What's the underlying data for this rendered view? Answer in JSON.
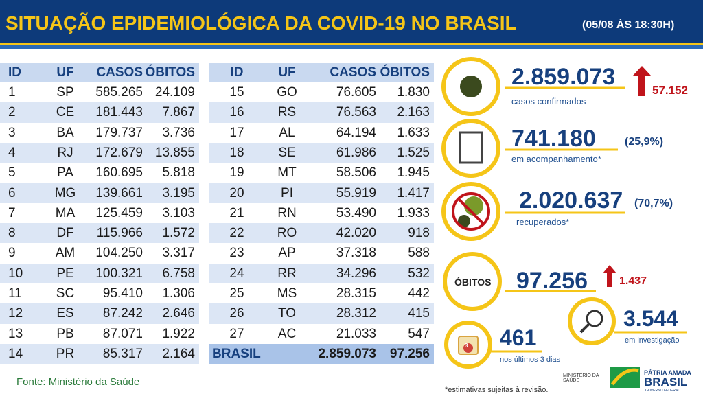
{
  "header": {
    "title": "SITUAÇÃO EPIDEMIOLÓGICA DA COVID-19 NO BRASIL",
    "date": "(05/08 ÀS 18:30H)"
  },
  "table_left": {
    "columns": [
      "ID",
      "UF",
      "CASOS",
      "ÓBITOS"
    ],
    "rows": [
      [
        "1",
        "SP",
        "585.265",
        "24.109"
      ],
      [
        "2",
        "CE",
        "181.443",
        "7.867"
      ],
      [
        "3",
        "BA",
        "179.737",
        "3.736"
      ],
      [
        "4",
        "RJ",
        "172.679",
        "13.855"
      ],
      [
        "5",
        "PA",
        "160.695",
        "5.818"
      ],
      [
        "6",
        "MG",
        "139.661",
        "3.195"
      ],
      [
        "7",
        "MA",
        "125.459",
        "3.103"
      ],
      [
        "8",
        "DF",
        "115.966",
        "1.572"
      ],
      [
        "9",
        "AM",
        "104.250",
        "3.317"
      ],
      [
        "10",
        "PE",
        "100.321",
        "6.758"
      ],
      [
        "11",
        "SC",
        "95.410",
        "1.306"
      ],
      [
        "12",
        "ES",
        "87.242",
        "2.646"
      ],
      [
        "13",
        "PB",
        "87.071",
        "1.922"
      ],
      [
        "14",
        "PR",
        "85.317",
        "2.164"
      ]
    ]
  },
  "table_right": {
    "columns": [
      "ID",
      "UF",
      "CASOS",
      "ÓBITOS"
    ],
    "rows": [
      [
        "15",
        "GO",
        "76.605",
        "1.830"
      ],
      [
        "16",
        "RS",
        "76.563",
        "2.163"
      ],
      [
        "17",
        "AL",
        "64.194",
        "1.633"
      ],
      [
        "18",
        "SE",
        "61.986",
        "1.525"
      ],
      [
        "19",
        "MT",
        "58.506",
        "1.945"
      ],
      [
        "20",
        "PI",
        "55.919",
        "1.417"
      ],
      [
        "21",
        "RN",
        "53.490",
        "1.933"
      ],
      [
        "22",
        "RO",
        "42.020",
        "918"
      ],
      [
        "23",
        "AP",
        "37.318",
        "588"
      ],
      [
        "24",
        "RR",
        "34.296",
        "532"
      ],
      [
        "25",
        "MS",
        "28.315",
        "442"
      ],
      [
        "26",
        "TO",
        "28.312",
        "415"
      ],
      [
        "27",
        "AC",
        "21.033",
        "547"
      ]
    ],
    "total": [
      "BRASIL",
      "2.859.073",
      "97.256"
    ]
  },
  "stats": {
    "confirmed": {
      "value": "2.859.073",
      "change": "57.152",
      "label": "casos confirmados"
    },
    "monitoring": {
      "value": "741.180",
      "pct": "(25,9%)",
      "label": "em acompanhamento*"
    },
    "recovered": {
      "value": "2.020.637",
      "pct": "(70,7%)",
      "label": "recuperados*"
    },
    "deaths": {
      "badge": "ÓBITOS",
      "value": "97.256",
      "change": "1.437"
    },
    "investigation": {
      "value": "3.544",
      "label": "em investigação"
    },
    "last3": {
      "icon": "3",
      "value": "461",
      "label": "nos últimos 3 dias"
    }
  },
  "footer": {
    "source": "Fonte: Ministério da Saúde",
    "note": "*estimativas sujeitas à revisão.",
    "ministry": "MINISTÉRIO DA SAÚDE",
    "slogan": "PÁTRIA AMADA",
    "brand": "BRASIL",
    "gov": "GOVERNO FEDERAL"
  }
}
